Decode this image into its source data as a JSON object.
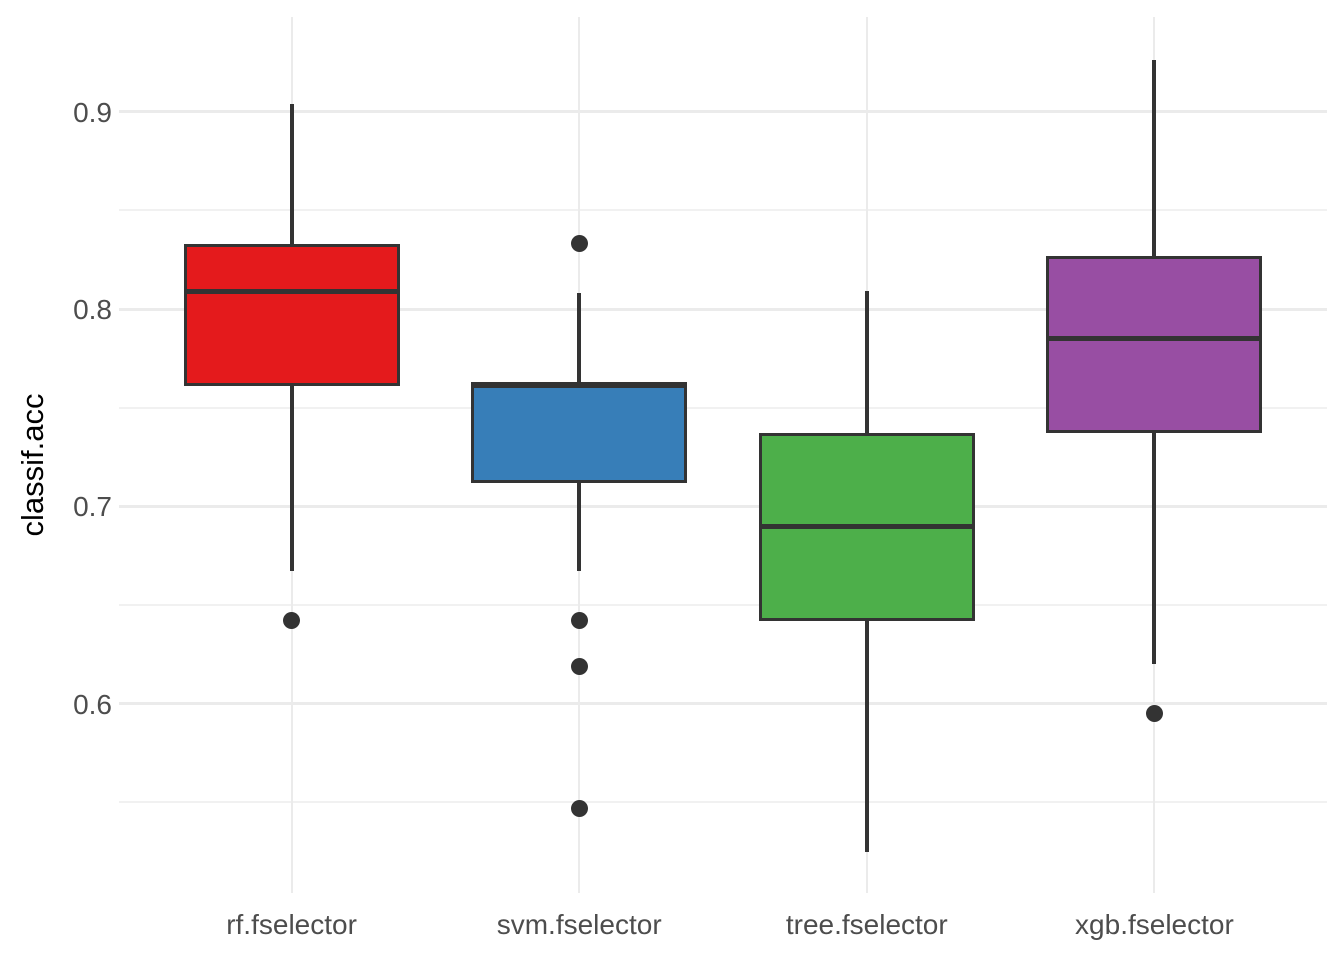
{
  "chart_data": {
    "type": "boxplot",
    "title": "",
    "xlabel": "",
    "ylabel": "classif.acc",
    "categories": [
      "rf.fselector",
      "svm.fselector",
      "tree.fselector",
      "xgb.fselector"
    ],
    "y_ticks": [
      0.6,
      0.7,
      0.8,
      0.9
    ],
    "y_tick_labels": [
      "0.6",
      "0.7",
      "0.8",
      "0.9"
    ],
    "y_minor_ticks": [
      0.55,
      0.65,
      0.75,
      0.85
    ],
    "ylim": [
      0.504,
      0.948
    ],
    "grid": "horizontal major+minor and vertical category gridlines, light gray on white",
    "legend": "none",
    "series": [
      {
        "name": "rf.fselector",
        "color": "#E41A1C",
        "whisker_low": 0.667,
        "q1": 0.761,
        "median": 0.809,
        "q3": 0.833,
        "whisker_high": 0.904,
        "outliers": [
          0.642
        ]
      },
      {
        "name": "svm.fselector",
        "color": "#377EB8",
        "whisker_low": 0.667,
        "q1": 0.712,
        "median": 0.761,
        "q3": 0.763,
        "whisker_high": 0.808,
        "outliers": [
          0.833,
          0.642,
          0.619,
          0.547
        ]
      },
      {
        "name": "tree.fselector",
        "color": "#4DAF4A",
        "whisker_low": 0.525,
        "q1": 0.642,
        "median": 0.69,
        "q3": 0.737,
        "whisker_high": 0.809,
        "outliers": []
      },
      {
        "name": "xgb.fselector",
        "color": "#984EA3",
        "whisker_low": 0.62,
        "q1": 0.737,
        "median": 0.785,
        "q3": 0.827,
        "whisker_high": 0.926,
        "outliers": [
          0.595
        ]
      }
    ],
    "colors": {
      "background": "#FFFFFF",
      "box_border": "#333333",
      "median_line": "#333333",
      "whisker": "#333333",
      "outlier_point": "#333333",
      "grid_major": "#EBEBEB",
      "grid_minor": "#F1F1F1",
      "tick_label": "#4D4D4D",
      "axis_title": "#000000"
    }
  }
}
